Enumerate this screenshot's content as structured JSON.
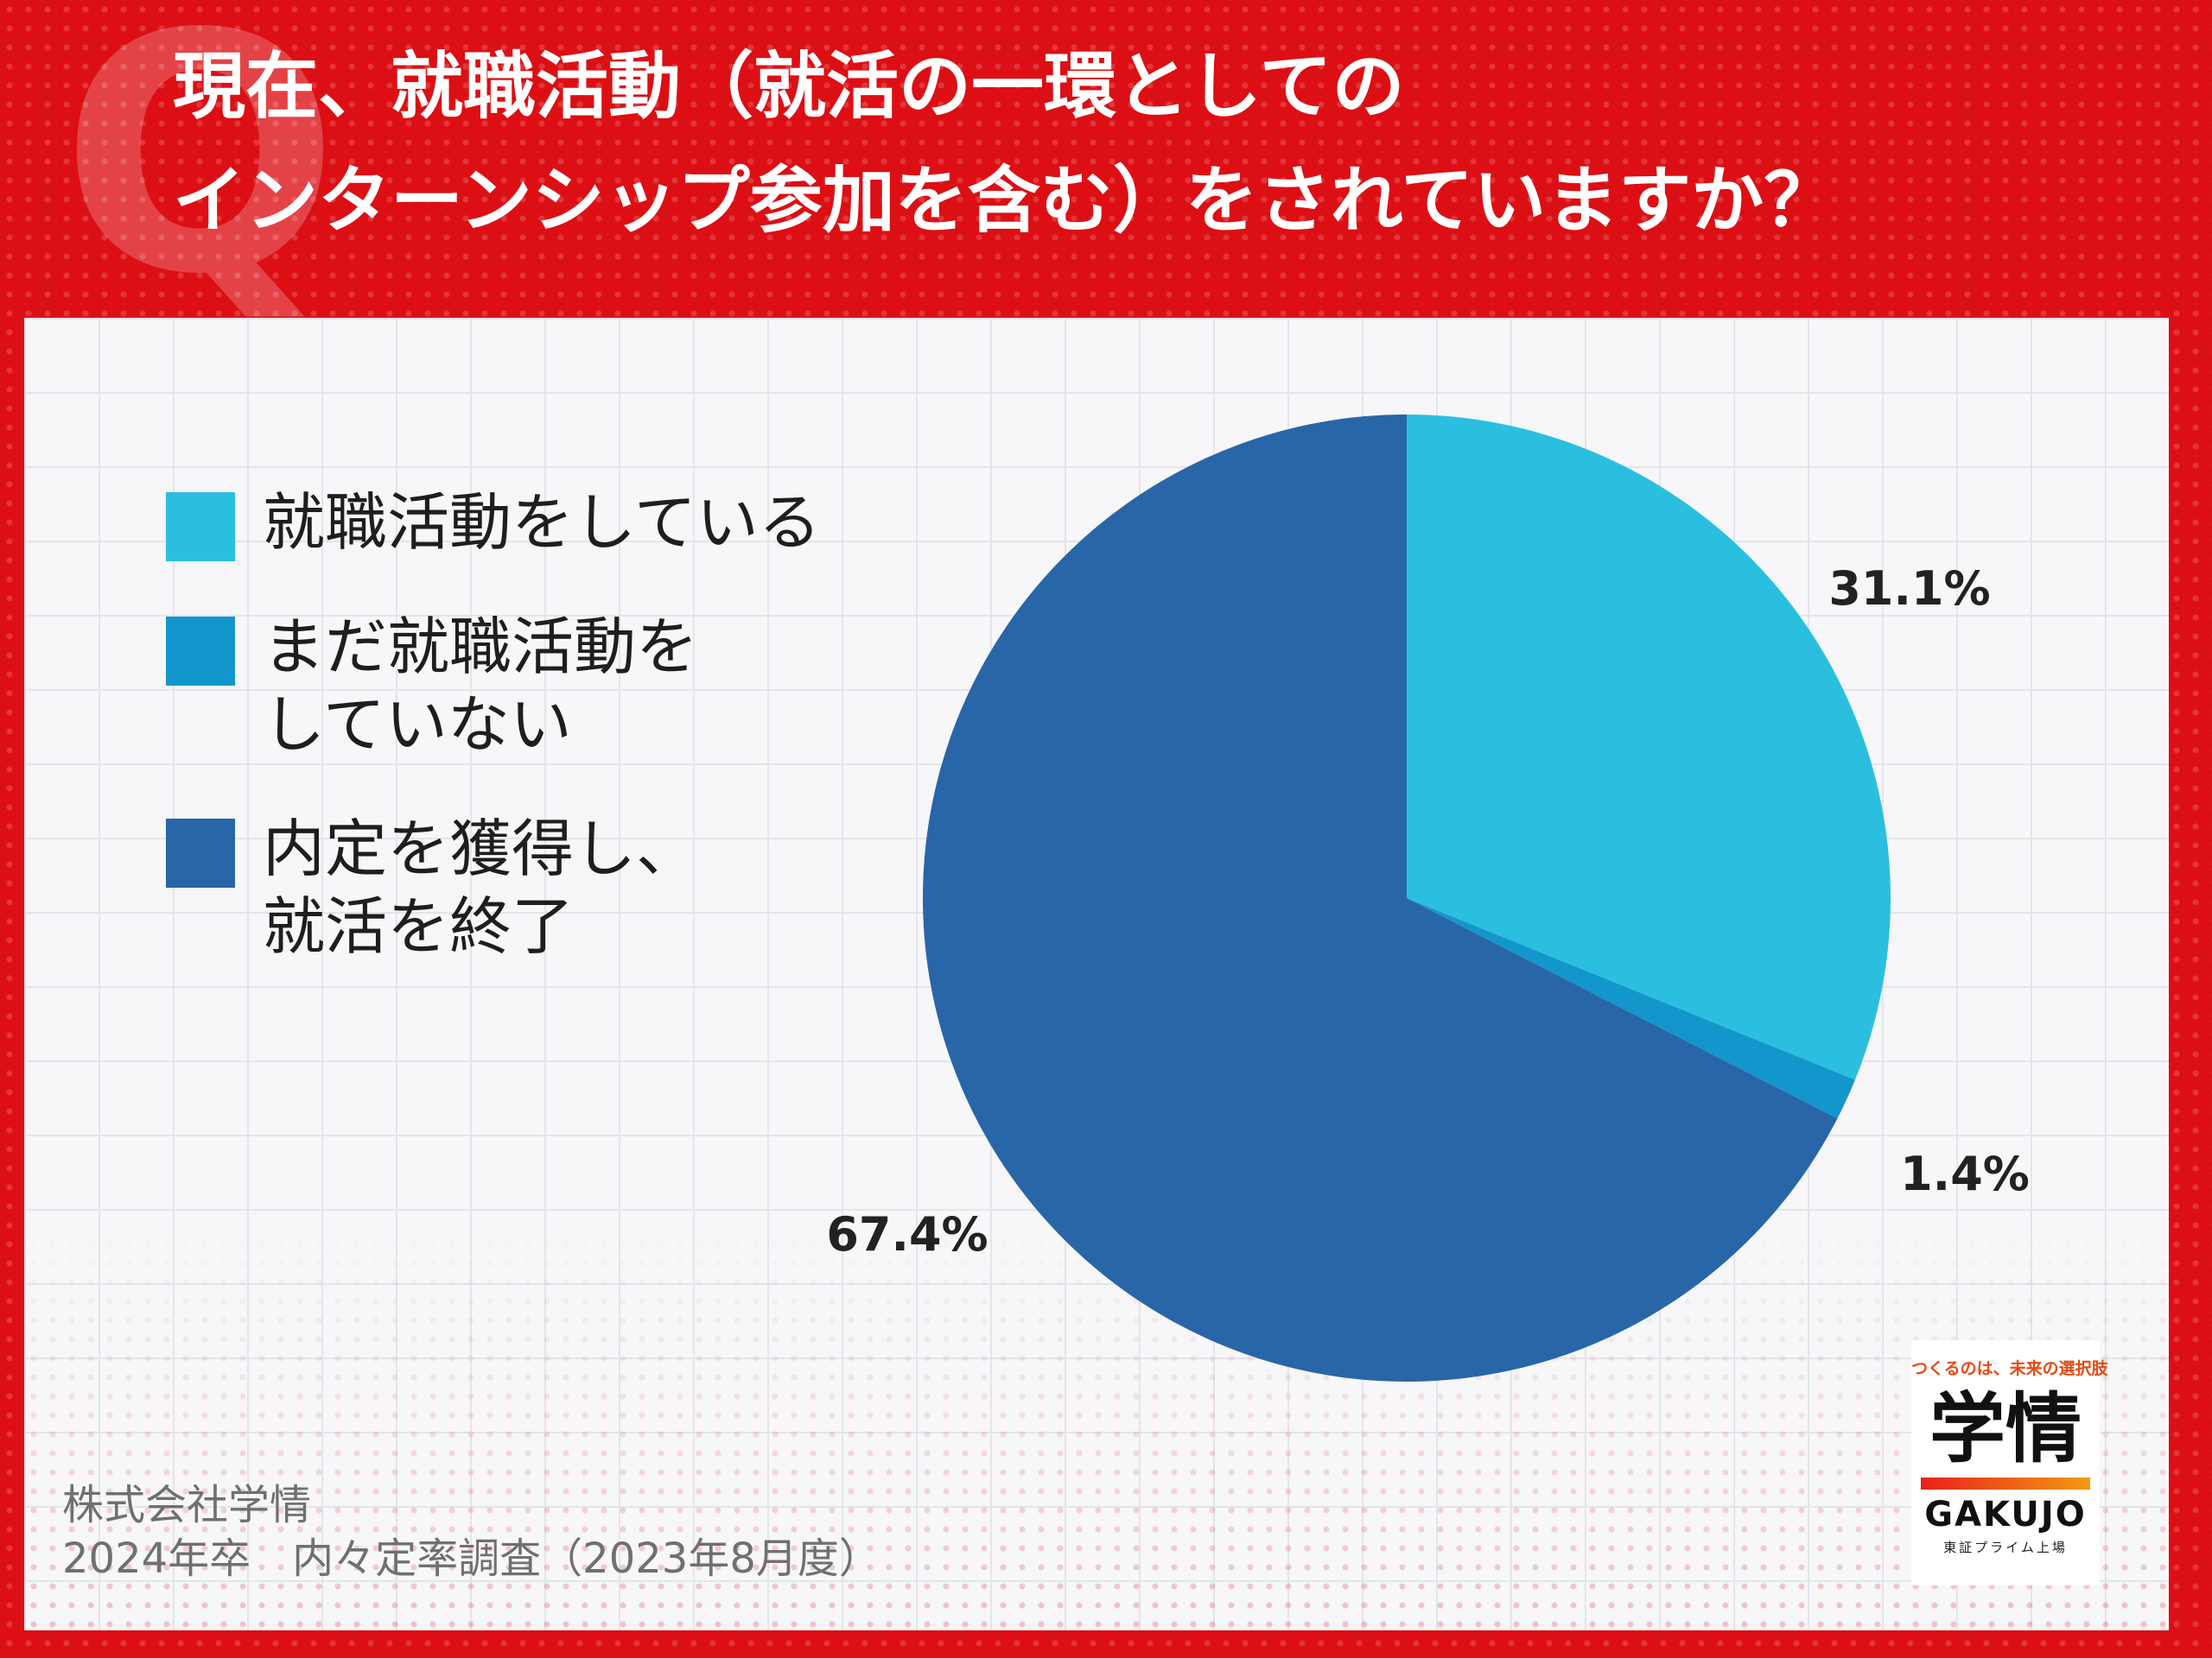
{
  "header": {
    "q_mark": "Q",
    "title_line1": "現在、就職活動（就活の一環としての",
    "title_line2": "インターンシップ参加を含む）をされていますか？"
  },
  "colors": {
    "frame": "#dc0f14",
    "series": [
      "#2bbfdf",
      "#1396cc",
      "#2866a8"
    ]
  },
  "chart_data": {
    "type": "pie",
    "title": "現在、就職活動（就活の一環としてのインターンシップ参加を含む）をされていますか？",
    "legend_position": "left",
    "slices": [
      {
        "label": "就職活動をしている",
        "value": 31.1,
        "value_label": "31.1%",
        "color": "#2bbfdf"
      },
      {
        "label": "まだ就職活動を\nしていない",
        "value": 1.4,
        "value_label": "1.4%",
        "color": "#1396cc"
      },
      {
        "label": "内定を獲得し、\n就活を終了",
        "value": 67.4,
        "value_label": "67.4%",
        "color": "#2866a8"
      }
    ]
  },
  "source": {
    "company": "株式会社学情",
    "survey": "2024年卒　内々定率調査（2023年8月度）"
  },
  "logo": {
    "tagline": "つくるのは、未来の選択肢",
    "mark": "学情",
    "name": "GAKUJO",
    "sub": "東証プライム上場"
  }
}
